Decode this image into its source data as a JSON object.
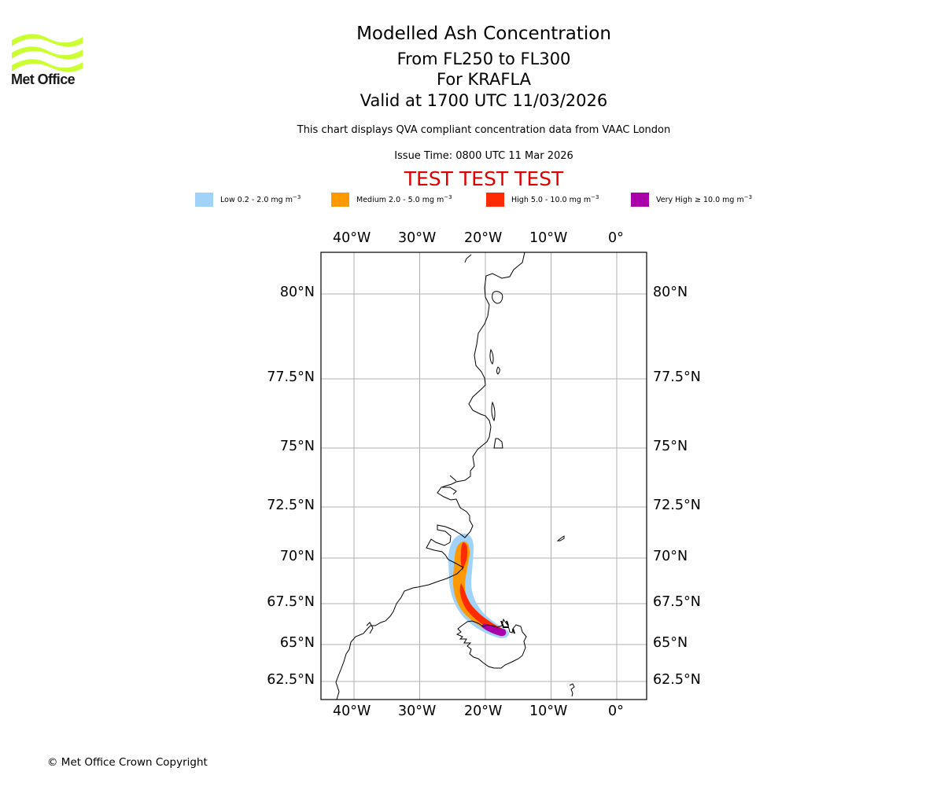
{
  "brand": {
    "logo_text": "Met Office",
    "logo_color": "#ccff33"
  },
  "header": {
    "title": "Modelled Ash Concentration",
    "level_range": "From FL250 to FL300",
    "volcano": "For KRAFLA",
    "valid_time": "Valid at 1700 UTC 11/03/2026",
    "description": "This chart displays QVA compliant concentration data from VAAC London",
    "issue_time": "Issue Time: 0800 UTC 11 Mar 2026",
    "test_banner": "TEST TEST TEST",
    "test_color": "#e00000"
  },
  "legend": [
    {
      "name": "Low",
      "label": "Low 0.2 - 2.0 mg m",
      "exp": "−3",
      "color": "#a0d2fa"
    },
    {
      "name": "Medium",
      "label": "Medium 2.0 - 5.0 mg m",
      "exp": "−3",
      "color": "#ff9900"
    },
    {
      "name": "High",
      "label": "High 5.0 - 10.0 mg m",
      "exp": "−3",
      "color": "#ff2a00"
    },
    {
      "name": "Very High",
      "label": "Very High  ≥  10.0 mg m",
      "exp": "−3",
      "color": "#aa00aa"
    }
  ],
  "map": {
    "extent": {
      "lon": [
        -45,
        4.5
      ],
      "lat": [
        61.5,
        82
      ]
    },
    "lon_ticks": [
      {
        "value": -40,
        "label": "40°W"
      },
      {
        "value": -30,
        "label": "30°W"
      },
      {
        "value": -20,
        "label": "20°W"
      },
      {
        "value": -10,
        "label": "10°W"
      },
      {
        "value": 0,
        "label": "0°"
      }
    ],
    "lat_ticks": [
      {
        "value": 80,
        "label": "80°N"
      },
      {
        "value": 77.5,
        "label": "77.5°N"
      },
      {
        "value": 75,
        "label": "75°N"
      },
      {
        "value": 72.5,
        "label": "72.5°N"
      },
      {
        "value": 70,
        "label": "70°N"
      },
      {
        "value": 67.5,
        "label": "67.5°N"
      },
      {
        "value": 65,
        "label": "65°N"
      },
      {
        "value": 62.5,
        "label": "62.5°N"
      }
    ],
    "gridline_color": "#b0b0b0",
    "ash_plume": {
      "source": "KRAFLA",
      "source_lon": -16.8,
      "source_lat": 65.7,
      "axis": [
        {
          "lon": -17.5,
          "lat": 65.75
        },
        {
          "lon": -19.5,
          "lat": 66.1
        },
        {
          "lon": -21.5,
          "lat": 66.7
        },
        {
          "lon": -23.0,
          "lat": 67.5
        },
        {
          "lon": -24.0,
          "lat": 68.5
        },
        {
          "lon": -24.2,
          "lat": 69.5
        },
        {
          "lon": -23.8,
          "lat": 70.3
        },
        {
          "lon": -23.3,
          "lat": 70.9
        }
      ]
    }
  },
  "footer": {
    "copyright": "© Met Office Crown Copyright"
  }
}
